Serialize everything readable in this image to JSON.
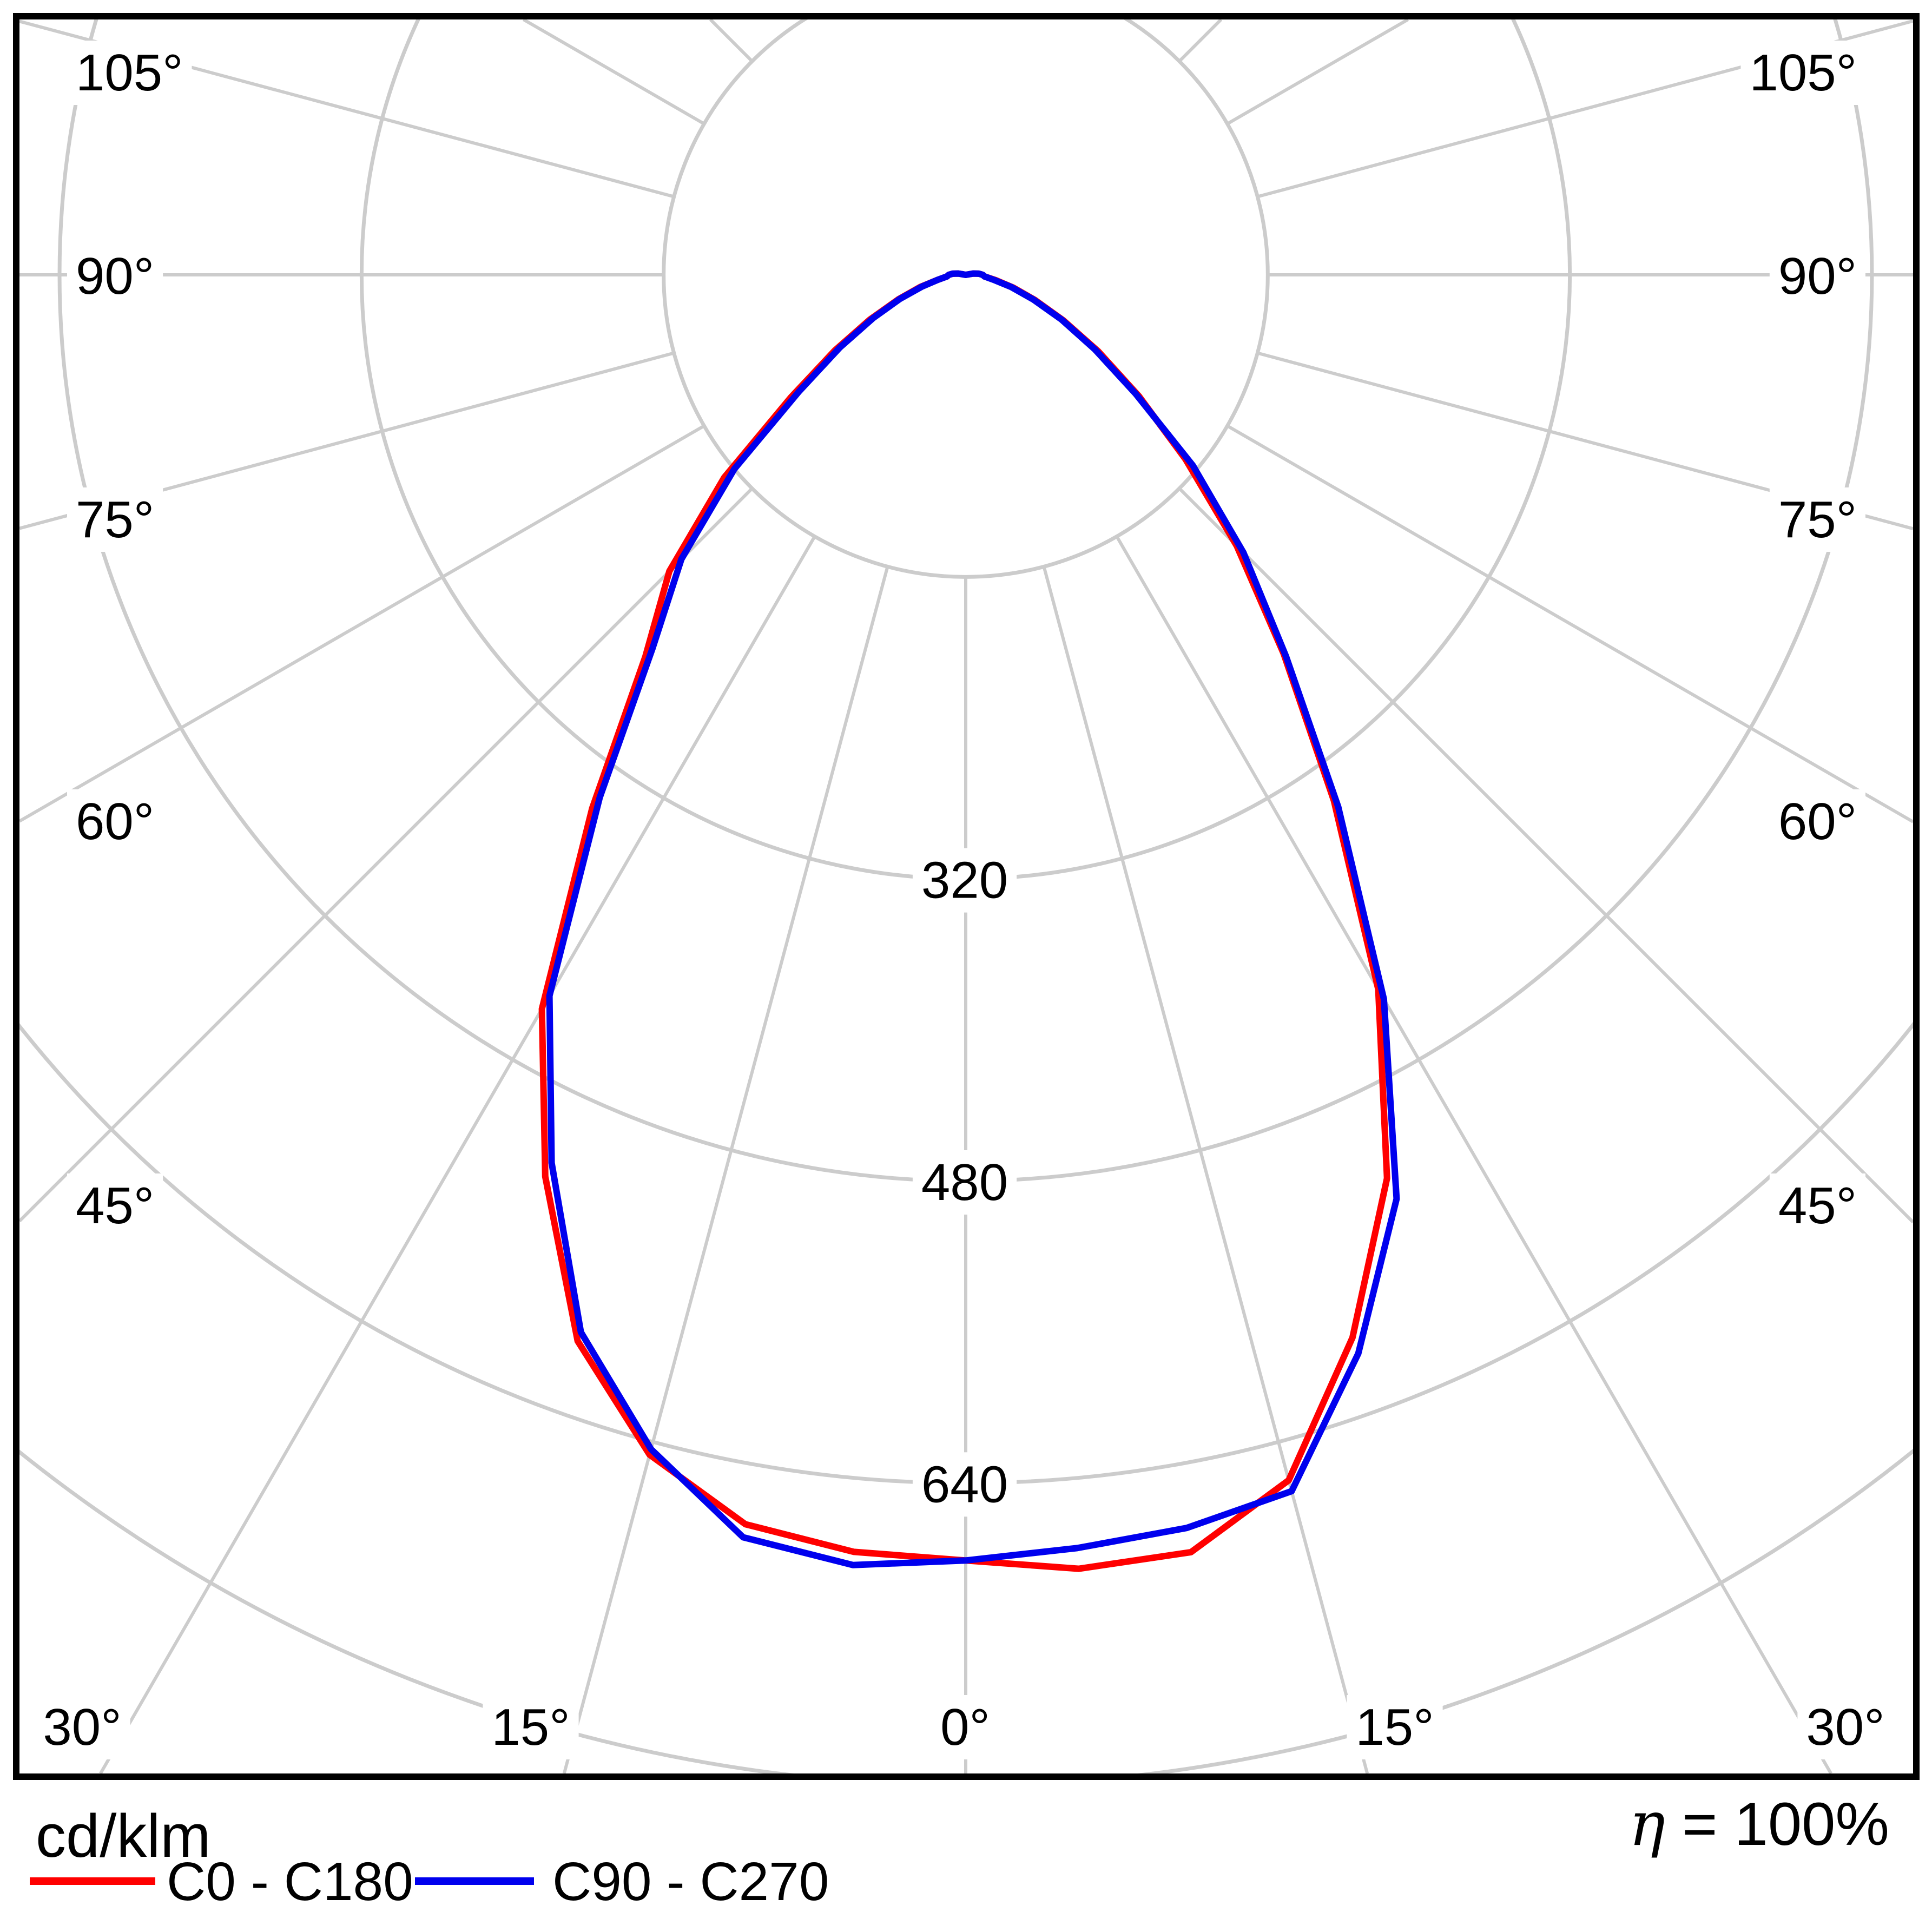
{
  "chart_data": {
    "type": "polar_intensity_curve",
    "units_label": "cd/klm",
    "efficiency": {
      "symbol": "η",
      "rest": " = 100%"
    },
    "grid": {
      "color": "#cccccc",
      "ring_values_cd_klm": [
        160,
        320,
        480,
        640,
        800
      ],
      "ring_label_values": [
        320,
        480,
        640
      ],
      "angle_step_deg": 15,
      "angle_tick_labels_deg": [
        0,
        15,
        30,
        45,
        60,
        75,
        90,
        105
      ]
    },
    "series": [
      {
        "name": "C0 - C180",
        "color": "#ff0000",
        "angles_deg": [
          0,
          5,
          10,
          15,
          20,
          25,
          30,
          35,
          40,
          45,
          50,
          55,
          60,
          65,
          70,
          75,
          80,
          85,
          90,
          95,
          100,
          105
        ],
        "right_values": [
          681,
          688,
          687,
          661,
          599,
          528,
          437,
          340,
          262,
          203,
          152,
          112,
          81,
          57,
          39,
          26,
          16,
          10,
          9,
          7,
          4,
          0
        ],
        "left_values": [
          681,
          679,
          672,
          647,
          601,
          527,
          449,
          345,
          264,
          222,
          167,
          113,
          80,
          56,
          38,
          25,
          15,
          10,
          9,
          7,
          4,
          0
        ]
      },
      {
        "name": "C90 - C270",
        "color": "#0000ee",
        "angles_deg": [
          0,
          5,
          10,
          15,
          20,
          25,
          30,
          35,
          40,
          45,
          50,
          55,
          60,
          65,
          70,
          75,
          80,
          85,
          90,
          95,
          100,
          105
        ],
        "right_values": [
          681,
          677,
          674,
          667,
          608,
          540,
          443,
          344,
          264,
          208,
          157,
          110,
          79,
          56,
          38,
          25,
          15,
          10,
          9,
          7,
          4,
          0
        ],
        "left_values": [
          681,
          686,
          679,
          644,
          596,
          519,
          441,
          338,
          258,
          213,
          160,
          108,
          77,
          54,
          37,
          24,
          15,
          10,
          9,
          7,
          4,
          0
        ]
      }
    ],
    "legend": [
      {
        "label": "C0 - C180",
        "color": "#ff0000"
      },
      {
        "label": "C90 - C270",
        "color": "#0000ee"
      }
    ]
  }
}
